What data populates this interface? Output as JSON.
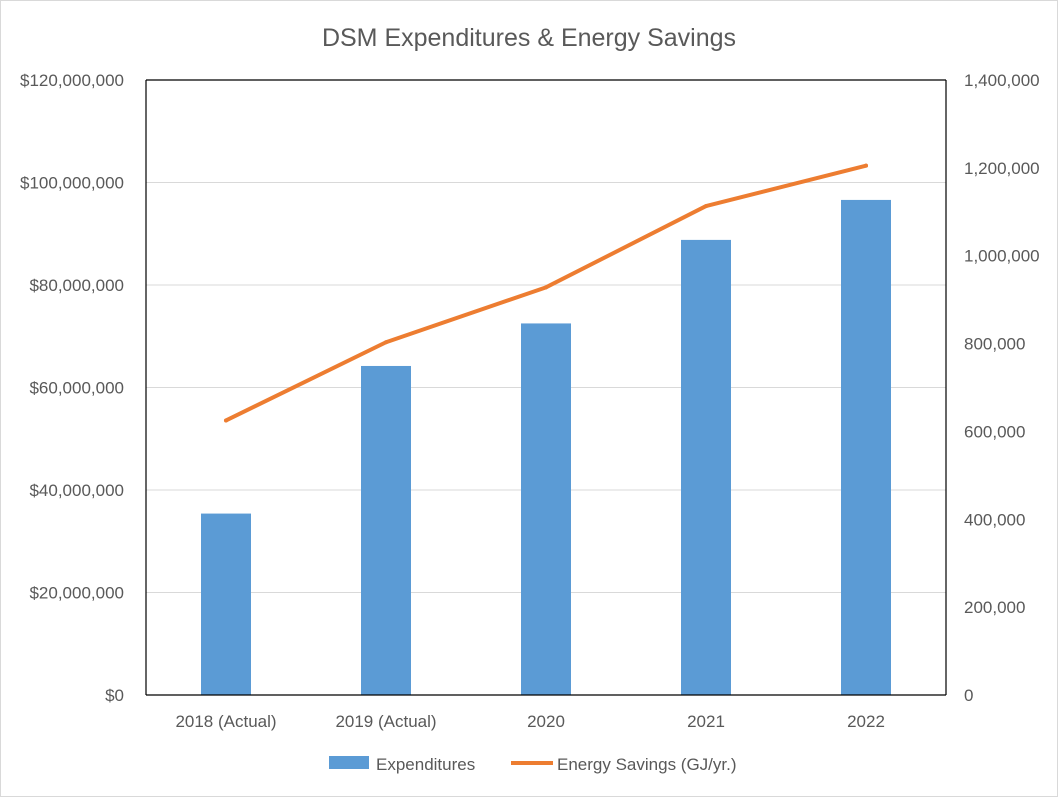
{
  "chart_data": {
    "type": "bar",
    "title": "DSM Expenditures & Energy Savings",
    "categories": [
      "2018 (Actual)",
      "2019 (Actual)",
      "2020",
      "2021",
      "2022"
    ],
    "series": [
      {
        "name": "Expenditures",
        "type": "bar",
        "axis": "left",
        "color": "#5b9bd5",
        "values": [
          35400000,
          64200000,
          72500000,
          88800000,
          96600000
        ]
      },
      {
        "name": "Energy Savings (GJ/yr.)",
        "type": "line",
        "axis": "right",
        "color": "#ed7d31",
        "values": [
          625000,
          803000,
          928000,
          1113000,
          1205000
        ]
      }
    ],
    "y_left": {
      "lim": [
        0,
        120000000
      ],
      "ticks": [
        0,
        20000000,
        40000000,
        60000000,
        80000000,
        100000000,
        120000000
      ],
      "tick_labels": [
        "$0",
        "$20,000,000",
        "$40,000,000",
        "$60,000,000",
        "$80,000,000",
        "$100,000,000",
        "$120,000,000"
      ]
    },
    "y_right": {
      "lim": [
        0,
        1400000
      ],
      "ticks": [
        0,
        200000,
        400000,
        600000,
        800000,
        1000000,
        1200000,
        1400000
      ],
      "tick_labels": [
        "0",
        "200,000",
        "400,000",
        "600,000",
        "800,000",
        "1,000,000",
        "1,200,000",
        "1,400,000"
      ]
    },
    "grid": true,
    "legend": "bottom"
  }
}
